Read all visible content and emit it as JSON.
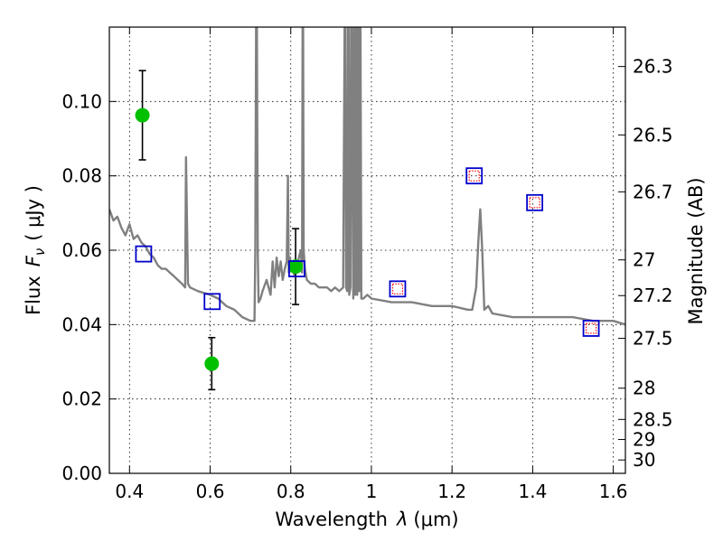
{
  "chart_data": {
    "type": "scatter",
    "xlabel_text": "Wavelength",
    "xlabel_symbol": "λ",
    "xlabel_unit": "(μm)",
    "ylabel_text": "Flux",
    "ylabel_symbol": "F",
    "ylabel_subscript": "ν",
    "ylabel_unit": "( μJy )",
    "y2label": "Magnitude (AB)",
    "xlim": [
      0.35,
      1.63
    ],
    "ylim": [
      0.0,
      0.12
    ],
    "grid": true,
    "xticks": [
      0.4,
      0.6,
      0.8,
      1.0,
      1.2,
      1.4,
      1.6
    ],
    "xtick_labels": [
      "0.4",
      "0.6",
      "0.8",
      "1",
      "1.2",
      "1.4",
      "1.6"
    ],
    "yticks": [
      0.0,
      0.02,
      0.04,
      0.06,
      0.08,
      0.1
    ],
    "ytick_labels": [
      "0.00",
      "0.02",
      "0.04",
      "0.06",
      "0.08",
      "0.10"
    ],
    "y2ticks": [
      {
        "label": "26.3",
        "flux": 0.1094
      },
      {
        "label": "26.5",
        "flux": 0.091
      },
      {
        "label": "26.7",
        "flux": 0.0757
      },
      {
        "label": "27",
        "flux": 0.0574
      },
      {
        "label": "27.2",
        "flux": 0.0478
      },
      {
        "label": "27.5",
        "flux": 0.0363
      },
      {
        "label": "28",
        "flux": 0.0229
      },
      {
        "label": "28.5",
        "flux": 0.0145
      },
      {
        "label": "29",
        "flux": 0.0091
      },
      {
        "label": "30",
        "flux": 0.0036
      }
    ],
    "series": [
      {
        "kind": "line",
        "color": "#808080",
        "x": [
          0.35,
          0.36,
          0.37,
          0.38,
          0.39,
          0.4,
          0.41,
          0.42,
          0.43,
          0.44,
          0.45,
          0.46,
          0.47,
          0.48,
          0.49,
          0.5,
          0.51,
          0.52,
          0.53,
          0.538,
          0.54,
          0.545,
          0.55,
          0.57,
          0.6,
          0.62,
          0.64,
          0.66,
          0.68,
          0.7,
          0.71,
          0.712,
          0.715,
          0.718,
          0.72,
          0.725,
          0.73,
          0.74,
          0.75,
          0.755,
          0.76,
          0.765,
          0.77,
          0.775,
          0.78,
          0.785,
          0.79,
          0.793,
          0.795,
          0.798,
          0.8,
          0.81,
          0.82,
          0.825,
          0.828,
          0.83,
          0.832,
          0.835,
          0.838,
          0.84,
          0.85,
          0.86,
          0.87,
          0.88,
          0.89,
          0.9,
          0.91,
          0.92,
          0.93,
          0.935,
          0.937,
          0.94,
          0.943,
          0.945,
          0.948,
          0.95,
          0.955,
          0.958,
          0.96,
          0.963,
          0.965,
          0.968,
          0.97,
          0.972,
          0.975,
          0.98,
          0.99,
          1.0,
          1.05,
          1.1,
          1.15,
          1.2,
          1.24,
          1.25,
          1.26,
          1.265,
          1.27,
          1.275,
          1.28,
          1.29,
          1.3,
          1.35,
          1.4,
          1.45,
          1.5,
          1.55,
          1.6,
          1.63
        ],
        "y": [
          0.071,
          0.068,
          0.069,
          0.066,
          0.064,
          0.067,
          0.063,
          0.064,
          0.062,
          0.061,
          0.059,
          0.058,
          0.056,
          0.055,
          0.055,
          0.054,
          0.053,
          0.052,
          0.051,
          0.05,
          0.085,
          0.051,
          0.05,
          0.049,
          0.048,
          0.047,
          0.045,
          0.044,
          0.042,
          0.041,
          0.041,
          0.06,
          0.15,
          0.06,
          0.046,
          0.047,
          0.049,
          0.052,
          0.048,
          0.057,
          0.05,
          0.058,
          0.053,
          0.057,
          0.052,
          0.055,
          0.057,
          0.08,
          0.054,
          0.058,
          0.056,
          0.053,
          0.058,
          0.06,
          0.054,
          0.15,
          0.06,
          0.055,
          0.053,
          0.052,
          0.051,
          0.051,
          0.05,
          0.05,
          0.05,
          0.049,
          0.05,
          0.049,
          0.05,
          0.15,
          0.05,
          0.049,
          0.15,
          0.048,
          0.05,
          0.15,
          0.047,
          0.15,
          0.048,
          0.15,
          0.048,
          0.15,
          0.049,
          0.15,
          0.047,
          0.047,
          0.048,
          0.047,
          0.046,
          0.046,
          0.045,
          0.045,
          0.044,
          0.044,
          0.05,
          0.062,
          0.071,
          0.06,
          0.044,
          0.045,
          0.043,
          0.042,
          0.042,
          0.042,
          0.042,
          0.041,
          0.041,
          0.04
        ]
      },
      {
        "kind": "points-with-errors",
        "color": "#00c000",
        "x": [
          0.432,
          0.604,
          0.812
        ],
        "y": [
          0.0963,
          0.0295,
          0.0556
        ],
        "yerr_low": [
          0.0843,
          0.0225,
          0.0454
        ],
        "yerr_high": [
          0.1083,
          0.0365,
          0.0658
        ]
      },
      {
        "kind": "open-squares",
        "color": "#0000cc",
        "x": [
          0.435,
          0.605,
          0.815,
          1.065,
          1.255,
          1.405,
          1.545
        ],
        "y": [
          0.059,
          0.0462,
          0.055,
          0.0496,
          0.08,
          0.0728,
          0.039
        ]
      },
      {
        "kind": "dotted-squares",
        "color": "#ff0000",
        "x": [
          1.065,
          1.255,
          1.405,
          1.545
        ],
        "y": [
          0.0496,
          0.08,
          0.0728,
          0.039
        ]
      }
    ]
  }
}
